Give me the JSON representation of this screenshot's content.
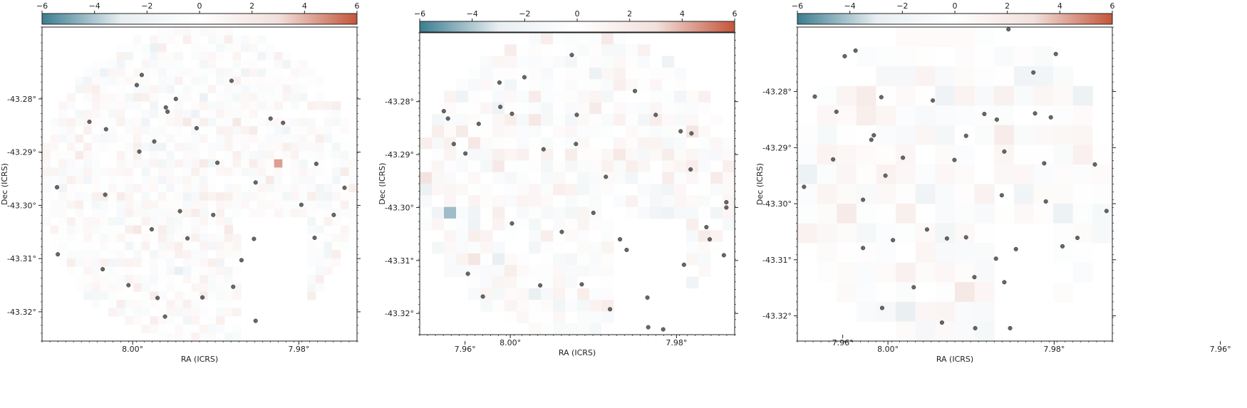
{
  "chart_data": [
    {
      "type": "heatmap",
      "xlabel": "RA (ICRS)",
      "ylabel": "Dec (ICRS)",
      "x_ticks": [
        8.0,
        7.98,
        7.96
      ],
      "x_tick_labels": [
        "8.00°",
        "7.98°",
        "7.96°"
      ],
      "y_ticks": [
        -43.28,
        -43.29,
        -43.3,
        -43.31,
        -43.32
      ],
      "y_tick_labels": [
        "-43.28°",
        "-43.29°",
        "-43.30°",
        "-43.31°",
        "-43.32°"
      ],
      "xlim": [
        8.0109,
        7.973
      ],
      "ylim": [
        -43.3255,
        -43.2665
      ],
      "grid": false,
      "colorbar": {
        "range": [
          -6,
          6
        ],
        "ticks": [
          -6,
          -4,
          -2,
          0,
          2,
          4,
          6
        ],
        "tick_labels": [
          "−6",
          "−4",
          "−2",
          "0",
          "2",
          "4",
          "6"
        ],
        "position": "top",
        "colors": [
          "#3c7d91",
          "#e8eef1",
          "#ffffff",
          "#f2e0dc",
          "#c4553a"
        ]
      },
      "grid_cells": {
        "nx": 38,
        "ny": 38,
        "seed": 11,
        "amplitude": 1.6,
        "footprint": "disk-notch"
      },
      "points": [
        [
          7.9989,
          -43.2755
        ],
        [
          7.9995,
          -43.2774
        ],
        [
          7.9948,
          -43.28
        ],
        [
          7.996,
          -43.2816
        ],
        [
          7.9958,
          -43.2824
        ],
        [
          7.9881,
          -43.2766
        ],
        [
          7.9834,
          -43.2837
        ],
        [
          8.0052,
          -43.2843
        ],
        [
          8.0032,
          -43.2857
        ],
        [
          7.9992,
          -43.2899
        ],
        [
          7.9974,
          -43.288
        ],
        [
          7.9923,
          -43.2855
        ],
        [
          7.9898,
          -43.292
        ],
        [
          7.9852,
          -43.2957
        ],
        [
          8.0091,
          -43.2966
        ],
        [
          8.0033,
          -43.298
        ],
        [
          7.9977,
          -43.3045
        ],
        [
          7.9943,
          -43.3011
        ],
        [
          7.9903,
          -43.3018
        ],
        [
          7.9854,
          -43.3063
        ],
        [
          7.9758,
          -43.3018
        ],
        [
          7.9781,
          -43.3061
        ],
        [
          8.009,
          -43.3092
        ],
        [
          8.0036,
          -43.312
        ],
        [
          8.0005,
          -43.315
        ],
        [
          7.9916,
          -43.3173
        ],
        [
          7.9879,
          -43.3153
        ],
        [
          7.9852,
          -43.3217
        ],
        [
          7.9961,
          -43.3209
        ],
        [
          7.997,
          -43.3174
        ],
        [
          7.9779,
          -43.2922
        ],
        [
          7.9745,
          -43.2967
        ],
        [
          7.9797,
          -43.2999
        ],
        [
          7.9819,
          -43.2845
        ],
        [
          7.9869,
          -43.3103
        ],
        [
          7.9934,
          -43.3062
        ]
      ]
    },
    {
      "type": "heatmap",
      "xlabel": "RA (ICRS)",
      "ylabel": "Dec (ICRS)",
      "x_ticks": [
        8.0,
        7.98,
        7.96
      ],
      "x_tick_labels": [
        "8.00°",
        "7.98°",
        "7.96°"
      ],
      "y_ticks": [
        -43.28,
        -43.29,
        -43.3,
        -43.31,
        -43.32
      ],
      "y_tick_labels": [
        "-43.28°",
        "-43.29°",
        "-43.30°",
        "-43.31°",
        "-43.32°"
      ],
      "xlim": [
        8.0109,
        7.973
      ],
      "ylim": [
        -43.324,
        -43.267
      ],
      "grid": false,
      "colorbar": {
        "range": [
          -6,
          6
        ],
        "ticks": [
          -6,
          -4,
          -2,
          0,
          2,
          4,
          6
        ],
        "tick_labels": [
          "−6",
          "−4",
          "−2",
          "0",
          "2",
          "4",
          "6"
        ],
        "position": "top",
        "colors": [
          "#3c7d91",
          "#e8eef1",
          "#ffffff",
          "#f2e0dc",
          "#c4553a"
        ]
      },
      "grid_cells": {
        "nx": 26,
        "ny": 26,
        "seed": 23,
        "amplitude": 1.9,
        "footprint": "disk-notch"
      },
      "points": [
        [
          7.9926,
          -43.2712
        ],
        [
          7.9983,
          -43.2754
        ],
        [
          8.0013,
          -43.2764
        ],
        [
          8.0012,
          -43.281
        ],
        [
          7.9998,
          -43.2823
        ],
        [
          7.992,
          -43.2825
        ],
        [
          7.985,
          -43.278
        ],
        [
          7.9825,
          -43.2825
        ],
        [
          7.9795,
          -43.2856
        ],
        [
          7.9782,
          -43.286
        ],
        [
          8.008,
          -43.2818
        ],
        [
          8.0075,
          -43.2832
        ],
        [
          8.0068,
          -43.288
        ],
        [
          8.0054,
          -43.2898
        ],
        [
          8.0038,
          -43.2842
        ],
        [
          7.996,
          -43.289
        ],
        [
          7.9921,
          -43.288
        ],
        [
          7.9885,
          -43.2942
        ],
        [
          7.9783,
          -43.2928
        ],
        [
          7.974,
          -43.299
        ],
        [
          7.9764,
          -43.3037
        ],
        [
          7.9868,
          -43.306
        ],
        [
          7.99,
          -43.301
        ],
        [
          7.9938,
          -43.3046
        ],
        [
          7.9998,
          -43.303
        ],
        [
          8.0051,
          -43.3125
        ],
        [
          8.0033,
          -43.3168
        ],
        [
          7.9964,
          -43.3147
        ],
        [
          7.9914,
          -43.3145
        ],
        [
          7.988,
          -43.3192
        ],
        [
          7.9834,
          -43.3226
        ],
        [
          7.9816,
          -43.323
        ],
        [
          7.9743,
          -43.309
        ],
        [
          7.976,
          -43.306
        ],
        [
          7.9791,
          -43.3108
        ],
        [
          7.9835,
          -43.317
        ],
        [
          7.986,
          -43.308
        ],
        [
          7.974,
          -43.3
        ]
      ]
    },
    {
      "type": "heatmap",
      "xlabel": "RA (ICRS)",
      "ylabel": "Dec (ICRS)",
      "x_ticks": [
        8.0,
        7.98,
        7.96
      ],
      "x_tick_labels": [
        "8.00°",
        "7.98°",
        "7.96°"
      ],
      "y_ticks": [
        -43.28,
        -43.29,
        -43.3,
        -43.31,
        -43.32
      ],
      "y_tick_labels": [
        "-43.28°",
        "-43.29°",
        "-43.30°",
        "-43.31°",
        "-43.32°"
      ],
      "xlim": [
        8.0109,
        7.973
      ],
      "ylim": [
        -43.3245,
        -43.2685
      ],
      "grid": false,
      "colorbar": {
        "range": [
          -6,
          6
        ],
        "ticks": [
          -6,
          -4,
          -2,
          0,
          2,
          4,
          6
        ],
        "tick_labels": [
          "−6",
          "−4",
          "−2",
          "0",
          "2",
          "4",
          "6"
        ],
        "position": "top",
        "colors": [
          "#3c7d91",
          "#e8eef1",
          "#ffffff",
          "#f2e0dc",
          "#c4553a"
        ]
      },
      "grid_cells": {
        "nx": 16,
        "ny": 16,
        "seed": 37,
        "amplitude": 1.8,
        "footprint": "disk-notch"
      },
      "points": [
        [
          7.9855,
          -43.2689
        ],
        [
          8.0039,
          -43.2727
        ],
        [
          8.0052,
          -43.2737
        ],
        [
          7.9798,
          -43.2733
        ],
        [
          7.9825,
          -43.2766
        ],
        [
          8.0088,
          -43.2809
        ],
        [
          8.0062,
          -43.2836
        ],
        [
          8.0008,
          -43.281
        ],
        [
          7.9946,
          -43.2816
        ],
        [
          7.9884,
          -43.284
        ],
        [
          7.9869,
          -43.285
        ],
        [
          7.9823,
          -43.2839
        ],
        [
          7.9804,
          -43.2846
        ],
        [
          7.9906,
          -43.2879
        ],
        [
          7.992,
          -43.2922
        ],
        [
          8.0017,
          -43.2878
        ],
        [
          8.002,
          -43.2886
        ],
        [
          8.0066,
          -43.2921
        ],
        [
          8.0003,
          -43.295
        ],
        [
          7.9982,
          -43.2918
        ],
        [
          7.986,
          -43.2907
        ],
        [
          7.9812,
          -43.2928
        ],
        [
          7.9751,
          -43.293
        ],
        [
          7.9863,
          -43.2985
        ],
        [
          7.981,
          -43.2996
        ],
        [
          7.9737,
          -43.3013
        ],
        [
          8.0101,
          -43.297
        ],
        [
          8.003,
          -43.2993
        ],
        [
          7.9994,
          -43.3065
        ],
        [
          8.003,
          -43.3079
        ],
        [
          7.9953,
          -43.3046
        ],
        [
          7.9929,
          -43.3062
        ],
        [
          7.9906,
          -43.306
        ],
        [
          7.987,
          -43.3098
        ],
        [
          7.9846,
          -43.3081
        ],
        [
          7.979,
          -43.3076
        ],
        [
          7.9772,
          -43.3061
        ],
        [
          7.986,
          -43.314
        ],
        [
          7.9896,
          -43.3131
        ],
        [
          7.9969,
          -43.3149
        ],
        [
          8.0007,
          -43.3186
        ],
        [
          7.9935,
          -43.3212
        ],
        [
          7.9895,
          -43.3222
        ],
        [
          7.9853,
          -43.3222
        ]
      ]
    }
  ]
}
